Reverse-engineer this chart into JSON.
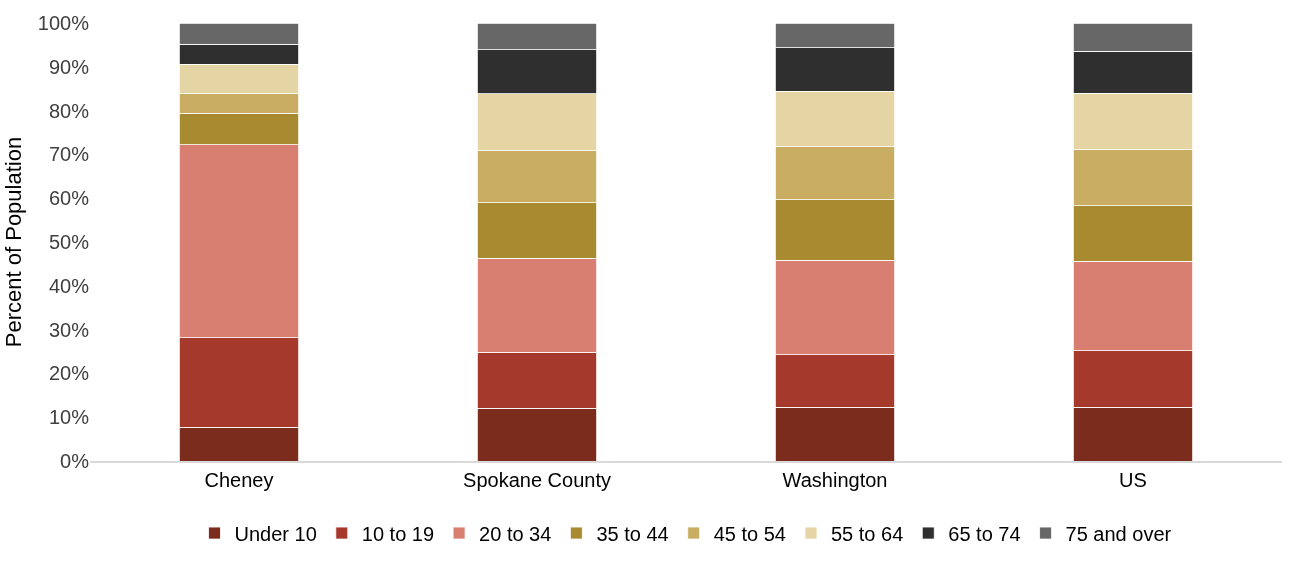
{
  "chart_data": {
    "type": "bar",
    "stacked": true,
    "ylabel": "Percent of Population",
    "categories": [
      "Cheney",
      "Spokane County",
      "Washington",
      "US"
    ],
    "series": [
      {
        "name": "Under 10",
        "color": "#7b2c1d",
        "values": [
          7.7,
          12.1,
          12.3,
          12.3
        ]
      },
      {
        "name": "10 to 19",
        "color": "#a5392b",
        "values": [
          20.4,
          12.7,
          12.0,
          12.9
        ]
      },
      {
        "name": "20 to 34",
        "color": "#d97f72",
        "values": [
          44.1,
          21.5,
          21.5,
          20.4
        ]
      },
      {
        "name": "35 to 44",
        "color": "#a88a30",
        "values": [
          7.2,
          12.7,
          13.8,
          12.7
        ]
      },
      {
        "name": "45 to 54",
        "color": "#c9ad62",
        "values": [
          4.6,
          11.8,
          12.3,
          12.8
        ]
      },
      {
        "name": "55 to 64",
        "color": "#e6d5a4",
        "values": [
          6.6,
          13.0,
          12.5,
          12.9
        ]
      },
      {
        "name": "65 to 74",
        "color": "#2f2f2f",
        "values": [
          4.6,
          10.1,
          9.9,
          9.6
        ]
      },
      {
        "name": "75 and over",
        "color": "#676767",
        "values": [
          4.8,
          6.1,
          5.7,
          6.4
        ]
      }
    ],
    "ylim": [
      0,
      100
    ],
    "yticks": [
      {
        "value": 0,
        "label": "0%"
      },
      {
        "value": 10,
        "label": "10%"
      },
      {
        "value": 20,
        "label": "20%"
      },
      {
        "value": 30,
        "label": "30%"
      },
      {
        "value": 40,
        "label": "40%"
      },
      {
        "value": 50,
        "label": "50%"
      },
      {
        "value": 60,
        "label": "60%"
      },
      {
        "value": 70,
        "label": "70%"
      },
      {
        "value": 80,
        "label": "80%"
      },
      {
        "value": 90,
        "label": "90%"
      },
      {
        "value": 100,
        "label": "100%"
      }
    ],
    "grid": false,
    "legend": "bottom"
  }
}
